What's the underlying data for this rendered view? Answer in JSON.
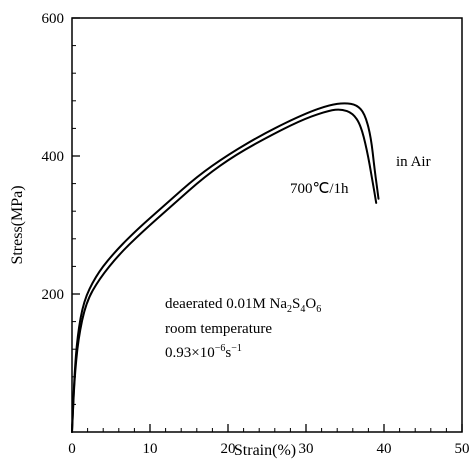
{
  "chart_data": {
    "type": "line",
    "xlabel": "Strain(%)",
    "ylabel": "Stress(MPa)",
    "xlim": [
      0,
      50
    ],
    "ylim": [
      0,
      600
    ],
    "x_ticks": [
      0,
      10,
      20,
      30,
      40,
      50
    ],
    "y_ticks": [
      200,
      400,
      600
    ],
    "x_tick_labels": [
      "0",
      "10",
      "20",
      "30",
      "40",
      "50"
    ],
    "y_tick_labels": [
      "200",
      "400",
      "600"
    ],
    "grid": false,
    "series": [
      {
        "name": "in Air",
        "points": [
          [
            0,
            0
          ],
          [
            0.3,
            80
          ],
          [
            0.7,
            140
          ],
          [
            1.5,
            190
          ],
          [
            3,
            225
          ],
          [
            5,
            255
          ],
          [
            8,
            290
          ],
          [
            12,
            330
          ],
          [
            16,
            370
          ],
          [
            20,
            402
          ],
          [
            25,
            435
          ],
          [
            30,
            462
          ],
          [
            33,
            474
          ],
          [
            35,
            477
          ],
          [
            36.5,
            474
          ],
          [
            37.5,
            462
          ],
          [
            38.3,
            430
          ],
          [
            38.8,
            380
          ],
          [
            39.3,
            338
          ]
        ]
      },
      {
        "name": "",
        "points": [
          [
            0,
            0
          ],
          [
            0.3,
            75
          ],
          [
            0.8,
            135
          ],
          [
            1.8,
            188
          ],
          [
            3.5,
            222
          ],
          [
            6,
            257
          ],
          [
            9,
            290
          ],
          [
            13,
            330
          ],
          [
            17,
            370
          ],
          [
            21,
            402
          ],
          [
            26,
            433
          ],
          [
            30,
            455
          ],
          [
            33,
            466
          ],
          [
            34.5,
            468
          ],
          [
            36,
            462
          ],
          [
            37,
            445
          ],
          [
            37.8,
            410
          ],
          [
            38.5,
            365
          ],
          [
            39,
            332
          ]
        ]
      }
    ],
    "annotations": {
      "in_air": "in Air",
      "heat_treatment": "700℃/1h",
      "env_line1": "deaerated 0.01M Na2S4O6",
      "env_line2": "room temperature",
      "env_line3": "0.93×10−6s−1"
    }
  }
}
